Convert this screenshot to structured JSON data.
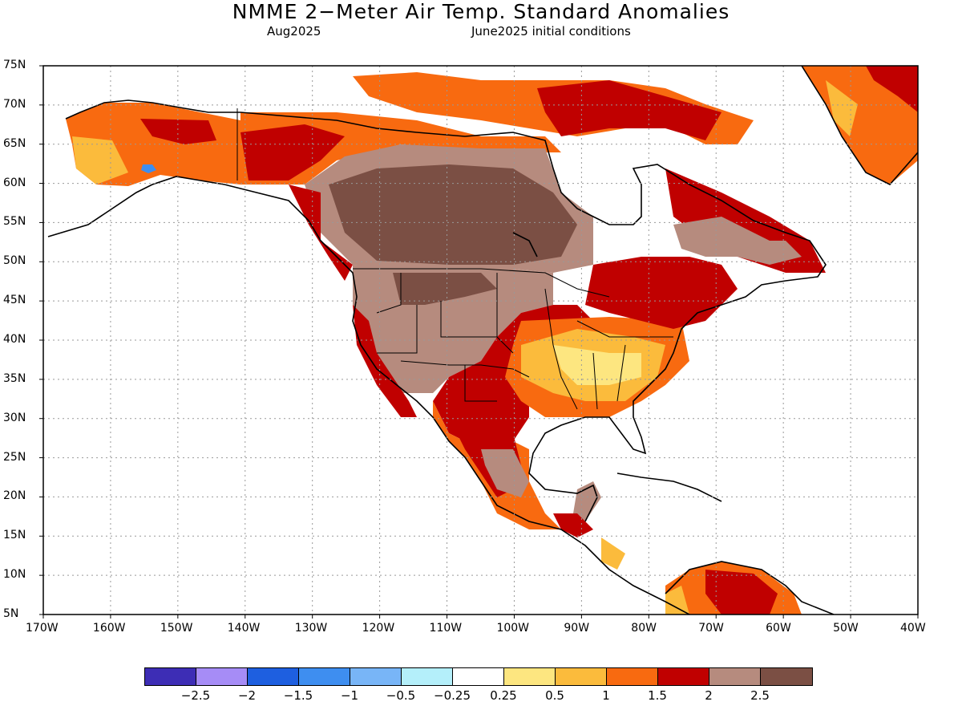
{
  "header": {
    "title": "NMME 2−Meter Air Temp. Standard Anomalies",
    "valid_month": "Aug2025",
    "initial_conditions": "June2025 initial conditions"
  },
  "map": {
    "lat_labels": [
      "75N",
      "70N",
      "65N",
      "60N",
      "55N",
      "50N",
      "45N",
      "40N",
      "35N",
      "30N",
      "25N",
      "20N",
      "15N",
      "10N",
      "5N"
    ],
    "lon_labels": [
      "170W",
      "160W",
      "150W",
      "140W",
      "130W",
      "120W",
      "110W",
      "100W",
      "90W",
      "80W",
      "70W",
      "60W",
      "50W",
      "40W"
    ],
    "ocean_color": "#ffffff",
    "coast_color": "#000000"
  },
  "colorbar": {
    "colors": [
      "#3d2db5",
      "#a68cf6",
      "#1e5fe0",
      "#3e8ef0",
      "#78b5f7",
      "#b4effa",
      "#ffffff",
      "#fde680",
      "#fbbb3c",
      "#f86a10",
      "#c00000",
      "#b68b7e",
      "#7b4f44"
    ],
    "labels": [
      "−2.5",
      "−2",
      "−1.5",
      "−1",
      "−0.5",
      "−0.25",
      "0.25",
      "0.5",
      "1",
      "1.5",
      "2",
      "2.5"
    ]
  }
}
